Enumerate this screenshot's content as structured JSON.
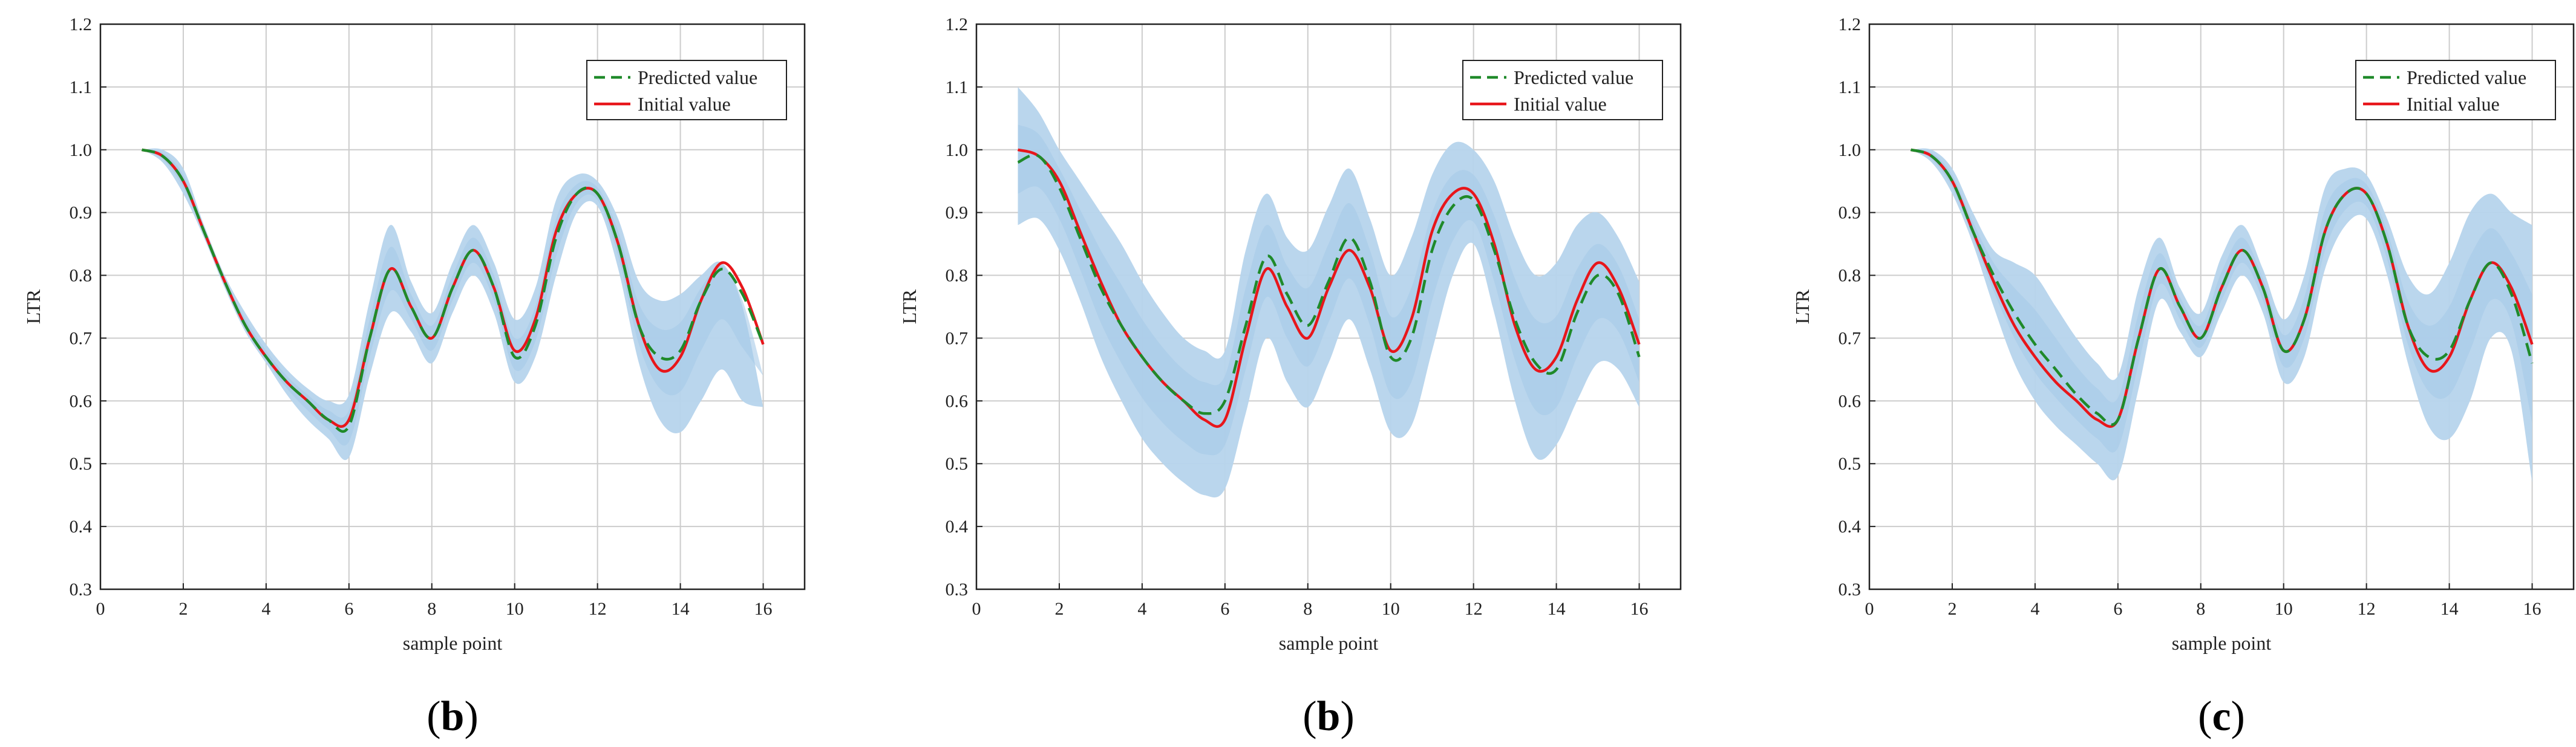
{
  "colors": {
    "band": "#b6d4ec",
    "band_inner": "#a6cae8",
    "predicted": "#1f8a2a",
    "initial": "#e8161b",
    "grid": "#cccccc",
    "axis": "#222222"
  },
  "chart_data": [
    {
      "type": "line",
      "panel_label": "b",
      "paren_open": "(",
      "paren_close": ")",
      "xlabel": "sample point",
      "ylabel": "LTR",
      "xlim": [
        0,
        17
      ],
      "ylim": [
        0.3,
        1.2
      ],
      "xticks": [
        "0",
        "2",
        "4",
        "6",
        "8",
        "10",
        "12",
        "14",
        "16"
      ],
      "yticks": [
        "0.3",
        "0.4",
        "0.5",
        "0.6",
        "0.7",
        "0.8",
        "0.9",
        "1.0",
        "1.1",
        "1.2"
      ],
      "legend": {
        "predicted": "Predicted value",
        "initial": "Initial value",
        "position": "top-right"
      },
      "x": [
        1,
        1.5,
        2,
        2.5,
        3,
        3.5,
        4,
        4.5,
        5,
        5.5,
        6,
        6.5,
        7,
        7.5,
        8,
        8.5,
        9,
        9.5,
        10,
        10.5,
        11,
        11.5,
        12,
        12.5,
        13,
        13.5,
        14,
        14.5,
        15,
        15.5,
        16
      ],
      "series": [
        {
          "name": "Initial value",
          "values": [
            1.0,
            0.99,
            0.95,
            0.87,
            0.79,
            0.72,
            0.67,
            0.63,
            0.6,
            0.57,
            0.57,
            0.7,
            0.81,
            0.75,
            0.7,
            0.78,
            0.84,
            0.78,
            0.68,
            0.73,
            0.87,
            0.93,
            0.93,
            0.85,
            0.72,
            0.65,
            0.67,
            0.76,
            0.82,
            0.78,
            0.69
          ]
        },
        {
          "name": "Predicted value",
          "values": [
            1.0,
            0.99,
            0.95,
            0.87,
            0.79,
            0.72,
            0.67,
            0.63,
            0.6,
            0.57,
            0.56,
            0.7,
            0.81,
            0.75,
            0.7,
            0.78,
            0.84,
            0.78,
            0.67,
            0.72,
            0.86,
            0.93,
            0.93,
            0.85,
            0.72,
            0.67,
            0.68,
            0.76,
            0.81,
            0.77,
            0.69
          ]
        },
        {
          "name": "Upper bound",
          "values": [
            1.0,
            1.0,
            0.97,
            0.88,
            0.8,
            0.74,
            0.69,
            0.65,
            0.62,
            0.6,
            0.61,
            0.76,
            0.88,
            0.79,
            0.74,
            0.82,
            0.88,
            0.82,
            0.73,
            0.78,
            0.92,
            0.96,
            0.95,
            0.89,
            0.79,
            0.76,
            0.77,
            0.8,
            0.82,
            0.75,
            0.59
          ]
        },
        {
          "name": "Lower bound",
          "values": [
            1.0,
            0.98,
            0.93,
            0.86,
            0.78,
            0.71,
            0.66,
            0.61,
            0.57,
            0.54,
            0.51,
            0.64,
            0.74,
            0.71,
            0.66,
            0.74,
            0.8,
            0.74,
            0.63,
            0.67,
            0.8,
            0.9,
            0.91,
            0.81,
            0.66,
            0.57,
            0.55,
            0.6,
            0.65,
            0.6,
            0.59
          ]
        }
      ]
    },
    {
      "type": "line",
      "panel_label": "b",
      "paren_open": "(",
      "paren_close": ")",
      "xlabel": "sample point",
      "ylabel": "LTR",
      "xlim": [
        0,
        17
      ],
      "ylim": [
        0.3,
        1.2
      ],
      "xticks": [
        "0",
        "2",
        "4",
        "6",
        "8",
        "10",
        "12",
        "14",
        "16"
      ],
      "yticks": [
        "0.3",
        "0.4",
        "0.5",
        "0.6",
        "0.7",
        "0.8",
        "0.9",
        "1.0",
        "1.1",
        "1.2"
      ],
      "legend": {
        "predicted": "Predicted value",
        "initial": "Initial value",
        "position": "top-right"
      },
      "x": [
        1,
        1.5,
        2,
        2.5,
        3,
        3.5,
        4,
        4.5,
        5,
        5.5,
        6,
        6.5,
        7,
        7.5,
        8,
        8.5,
        9,
        9.5,
        10,
        10.5,
        11,
        11.5,
        12,
        12.5,
        13,
        13.5,
        14,
        14.5,
        15,
        15.5,
        16
      ],
      "series": [
        {
          "name": "Initial value",
          "values": [
            1.0,
            0.99,
            0.95,
            0.87,
            0.79,
            0.72,
            0.67,
            0.63,
            0.6,
            0.57,
            0.57,
            0.7,
            0.81,
            0.75,
            0.7,
            0.78,
            0.84,
            0.78,
            0.68,
            0.73,
            0.87,
            0.93,
            0.93,
            0.85,
            0.72,
            0.65,
            0.67,
            0.76,
            0.82,
            0.78,
            0.69
          ]
        },
        {
          "name": "Predicted value",
          "values": [
            0.98,
            0.99,
            0.94,
            0.86,
            0.78,
            0.72,
            0.67,
            0.63,
            0.6,
            0.58,
            0.6,
            0.72,
            0.83,
            0.77,
            0.72,
            0.79,
            0.86,
            0.79,
            0.67,
            0.7,
            0.84,
            0.91,
            0.92,
            0.84,
            0.73,
            0.66,
            0.65,
            0.74,
            0.8,
            0.77,
            0.67
          ]
        },
        {
          "name": "Upper bound",
          "values": [
            1.1,
            1.06,
            1.0,
            0.95,
            0.9,
            0.85,
            0.79,
            0.74,
            0.7,
            0.68,
            0.68,
            0.84,
            0.93,
            0.86,
            0.84,
            0.91,
            0.97,
            0.89,
            0.8,
            0.86,
            0.96,
            1.01,
            1.0,
            0.95,
            0.86,
            0.8,
            0.82,
            0.88,
            0.9,
            0.86,
            0.79
          ]
        },
        {
          "name": "Lower bound",
          "values": [
            0.88,
            0.89,
            0.84,
            0.76,
            0.67,
            0.6,
            0.54,
            0.5,
            0.47,
            0.45,
            0.46,
            0.58,
            0.7,
            0.63,
            0.59,
            0.66,
            0.73,
            0.65,
            0.55,
            0.56,
            0.68,
            0.8,
            0.85,
            0.74,
            0.6,
            0.51,
            0.53,
            0.6,
            0.66,
            0.65,
            0.59
          ]
        }
      ]
    },
    {
      "type": "line",
      "panel_label": "c",
      "paren_open": "(",
      "paren_close": ")",
      "xlabel": "sample point",
      "ylabel": "LTR",
      "xlim": [
        0,
        17
      ],
      "ylim": [
        0.3,
        1.2
      ],
      "xticks": [
        "0",
        "2",
        "4",
        "6",
        "8",
        "10",
        "12",
        "14",
        "16"
      ],
      "yticks": [
        "0.3",
        "0.4",
        "0.5",
        "0.6",
        "0.7",
        "0.8",
        "0.9",
        "1.0",
        "1.1",
        "1.2"
      ],
      "legend": {
        "predicted": "Predicted value",
        "initial": "Initial value",
        "position": "top-right"
      },
      "x": [
        1,
        1.5,
        2,
        2.5,
        3,
        3.5,
        4,
        4.5,
        5,
        5.5,
        6,
        6.5,
        7,
        7.5,
        8,
        8.5,
        9,
        9.5,
        10,
        10.5,
        11,
        11.5,
        12,
        12.5,
        13,
        13.5,
        14,
        14.5,
        15,
        15.5,
        16
      ],
      "series": [
        {
          "name": "Initial value",
          "values": [
            1.0,
            0.99,
            0.95,
            0.87,
            0.79,
            0.72,
            0.67,
            0.63,
            0.6,
            0.57,
            0.57,
            0.7,
            0.81,
            0.75,
            0.7,
            0.78,
            0.84,
            0.78,
            0.68,
            0.73,
            0.87,
            0.93,
            0.93,
            0.85,
            0.72,
            0.65,
            0.67,
            0.76,
            0.82,
            0.78,
            0.69
          ]
        },
        {
          "name": "Predicted value",
          "values": [
            1.0,
            0.99,
            0.95,
            0.87,
            0.8,
            0.74,
            0.69,
            0.65,
            0.61,
            0.58,
            0.57,
            0.7,
            0.81,
            0.75,
            0.7,
            0.78,
            0.84,
            0.78,
            0.68,
            0.73,
            0.87,
            0.93,
            0.93,
            0.85,
            0.72,
            0.67,
            0.68,
            0.76,
            0.82,
            0.77,
            0.66
          ]
        },
        {
          "name": "Upper bound",
          "values": [
            1.0,
            1.0,
            0.97,
            0.9,
            0.84,
            0.82,
            0.8,
            0.75,
            0.7,
            0.66,
            0.64,
            0.78,
            0.86,
            0.78,
            0.74,
            0.83,
            0.88,
            0.81,
            0.73,
            0.8,
            0.94,
            0.97,
            0.96,
            0.89,
            0.8,
            0.77,
            0.82,
            0.9,
            0.93,
            0.9,
            0.88
          ]
        },
        {
          "name": "Lower bound",
          "values": [
            1.0,
            0.98,
            0.93,
            0.85,
            0.75,
            0.66,
            0.6,
            0.56,
            0.53,
            0.5,
            0.48,
            0.62,
            0.76,
            0.71,
            0.67,
            0.74,
            0.8,
            0.74,
            0.63,
            0.67,
            0.81,
            0.88,
            0.89,
            0.8,
            0.66,
            0.56,
            0.54,
            0.6,
            0.7,
            0.68,
            0.47
          ]
        }
      ]
    }
  ]
}
